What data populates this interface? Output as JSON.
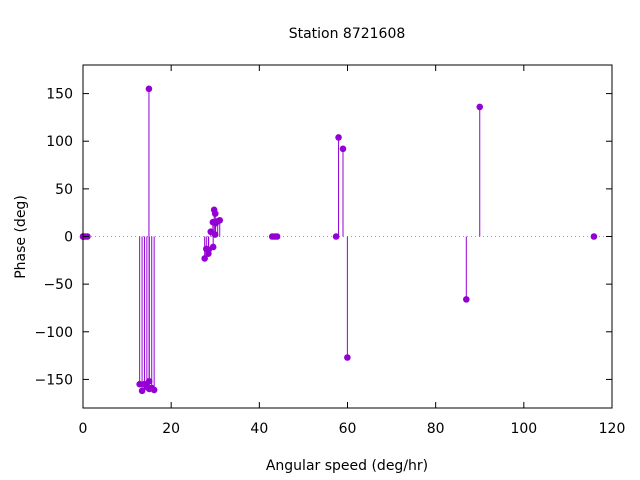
{
  "chart_data": {
    "type": "scatter",
    "style": "impulses-with-points",
    "title": "Station 8721608",
    "xlabel": "Angular speed (deg/hr)",
    "ylabel": "Phase (deg)",
    "xlim": [
      0,
      120
    ],
    "ylim": [
      -180,
      180
    ],
    "xticks": [
      0,
      20,
      40,
      60,
      80,
      100,
      120
    ],
    "yticks": [
      -150,
      -100,
      -50,
      0,
      50,
      100,
      150
    ],
    "zero_line": true,
    "grid": false,
    "legend": "none",
    "color": "#9400d3",
    "points": [
      {
        "x": 0.0,
        "y": 0
      },
      {
        "x": 0.04,
        "y": 0
      },
      {
        "x": 0.08,
        "y": 0
      },
      {
        "x": 0.5,
        "y": 0
      },
      {
        "x": 1.0,
        "y": 0
      },
      {
        "x": 12.85,
        "y": -155
      },
      {
        "x": 13.4,
        "y": -162
      },
      {
        "x": 13.94,
        "y": -155
      },
      {
        "x": 14.49,
        "y": -158
      },
      {
        "x": 14.96,
        "y": 155
      },
      {
        "x": 15.0,
        "y": -152
      },
      {
        "x": 15.04,
        "y": -160
      },
      {
        "x": 15.59,
        "y": -159
      },
      {
        "x": 16.14,
        "y": -161
      },
      {
        "x": 27.6,
        "y": -23
      },
      {
        "x": 27.97,
        "y": -13
      },
      {
        "x": 28.44,
        "y": -18
      },
      {
        "x": 28.51,
        "y": -14
      },
      {
        "x": 28.98,
        "y": 5
      },
      {
        "x": 29.46,
        "y": 15
      },
      {
        "x": 29.53,
        "y": -11
      },
      {
        "x": 29.75,
        "y": 28
      },
      {
        "x": 29.96,
        "y": 2
      },
      {
        "x": 30.0,
        "y": 24
      },
      {
        "x": 30.08,
        "y": 14
      },
      {
        "x": 30.55,
        "y": 16
      },
      {
        "x": 31.02,
        "y": 17
      },
      {
        "x": 42.93,
        "y": 0
      },
      {
        "x": 43.48,
        "y": 0
      },
      {
        "x": 44.03,
        "y": 0
      },
      {
        "x": 57.42,
        "y": 0
      },
      {
        "x": 57.97,
        "y": 104
      },
      {
        "x": 58.98,
        "y": 92
      },
      {
        "x": 59.97,
        "y": -127
      },
      {
        "x": 86.95,
        "y": -66
      },
      {
        "x": 90.0,
        "y": 136
      },
      {
        "x": 115.9,
        "y": 0
      }
    ]
  }
}
